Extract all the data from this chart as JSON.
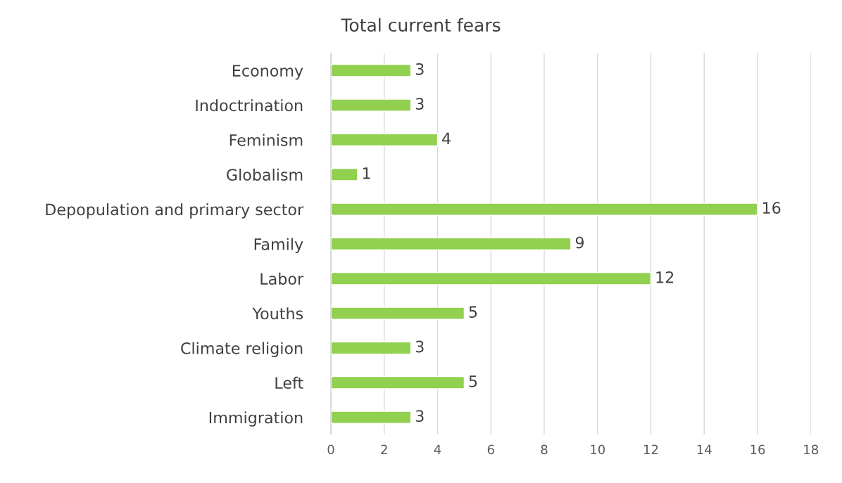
{
  "chart_data": {
    "type": "bar",
    "orientation": "horizontal",
    "title": "Total current fears",
    "categories": [
      "Economy",
      "Indoctrination",
      "Feminism",
      "Globalism",
      "Depopulation and primary sector",
      "Family",
      "Labor",
      "Youths",
      "Climate religion",
      "Left",
      "Immigration"
    ],
    "values": [
      3,
      3,
      4,
      1,
      16,
      9,
      12,
      5,
      3,
      5,
      3
    ],
    "color": "#92d050",
    "xlim": [
      0,
      18
    ],
    "xticks": [
      0,
      2,
      4,
      6,
      8,
      10,
      12,
      14,
      16,
      18
    ],
    "grid": "x",
    "data_labels": true
  }
}
